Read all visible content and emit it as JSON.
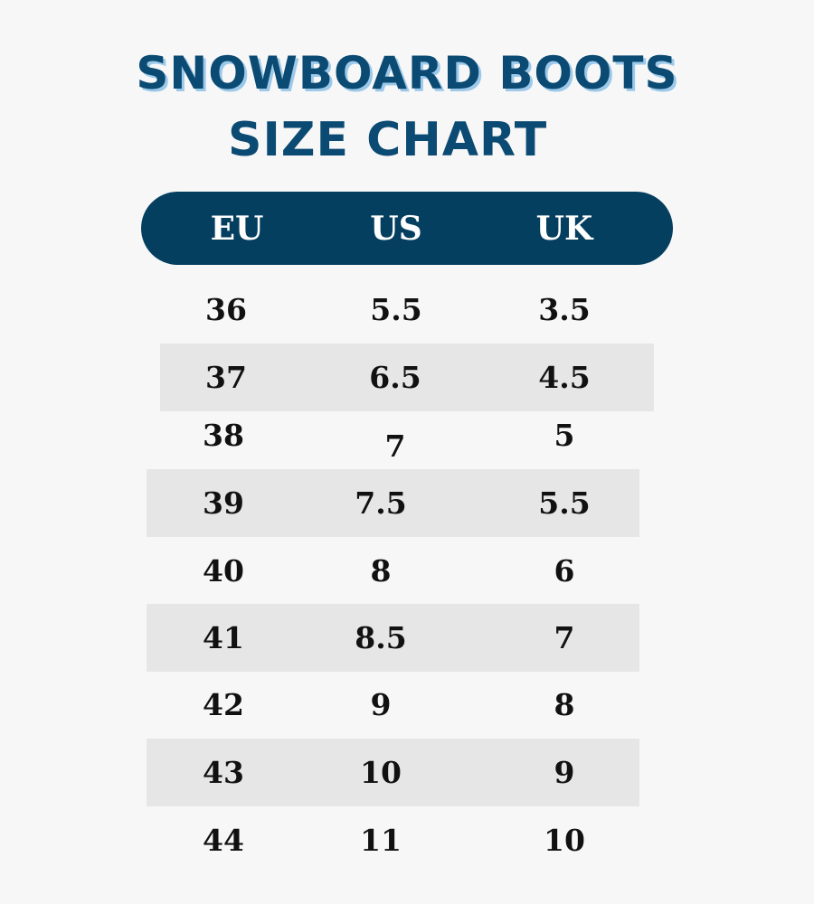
{
  "title": {
    "line1": "SNOWBOARD BOOTS",
    "line2": "SIZE CHART"
  },
  "colors": {
    "background": "#f7f7f7",
    "title": "#0b4a72",
    "title_shadow": "#9cc9ea",
    "header_fill": "#043f60",
    "band": "#e6e6e6"
  },
  "chart_data": {
    "type": "table",
    "title": "SNOWBOARD BOOTS SIZE CHART",
    "columns": [
      "EU",
      "US",
      "UK"
    ],
    "rows": [
      [
        "36",
        "5.5",
        "3.5"
      ],
      [
        "37",
        "6.5",
        "4.5"
      ],
      [
        "38",
        "7",
        "5"
      ],
      [
        "39",
        "7.5",
        "5.5"
      ],
      [
        "40",
        "8",
        "6"
      ],
      [
        "41",
        "8.5",
        "7"
      ],
      [
        "42",
        "9",
        "8"
      ],
      [
        "43",
        "10",
        "9"
      ],
      [
        "44",
        "11",
        "10"
      ]
    ]
  }
}
